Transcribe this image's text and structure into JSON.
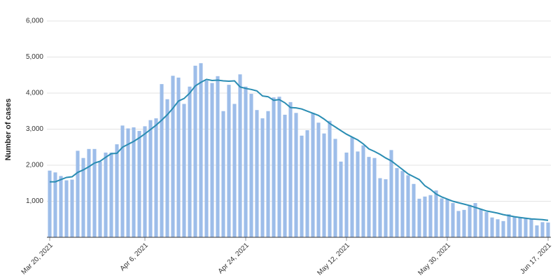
{
  "chart_data": {
    "type": "bar",
    "y_label": "Number of cases",
    "categories": [
      "Mar 20, 2021",
      null,
      null,
      null,
      null,
      null,
      null,
      null,
      null,
      null,
      null,
      null,
      null,
      null,
      null,
      null,
      null,
      "Apr 6, 2021",
      null,
      null,
      null,
      null,
      null,
      null,
      null,
      null,
      null,
      null,
      null,
      null,
      null,
      null,
      null,
      null,
      null,
      "Apr 24, 2021",
      null,
      null,
      null,
      null,
      null,
      null,
      null,
      null,
      null,
      null,
      null,
      null,
      null,
      null,
      null,
      null,
      null,
      "May 12, 2021",
      null,
      null,
      null,
      null,
      null,
      null,
      null,
      null,
      null,
      null,
      null,
      null,
      null,
      null,
      null,
      null,
      null,
      "May 30, 2021",
      null,
      null,
      null,
      null,
      null,
      null,
      null,
      null,
      null,
      null,
      null,
      null,
      null,
      null,
      null,
      null,
      null,
      "Jun 17, 2021"
    ],
    "series": [
      {
        "type": "bar",
        "color": "#9dbde9",
        "values": [
          1850,
          1800,
          1700,
          1580,
          1600,
          2400,
          2200,
          2450,
          2450,
          2100,
          2350,
          2350,
          2580,
          3100,
          3020,
          3050,
          2950,
          3080,
          3250,
          3300,
          4250,
          3830,
          4480,
          4430,
          3700,
          4180,
          4760,
          4830,
          4350,
          4280,
          4470,
          3500,
          4230,
          3700,
          4520,
          4180,
          3980,
          3530,
          3300,
          3500,
          3880,
          3900,
          3400,
          3750,
          3450,
          2820,
          2970,
          3450,
          3180,
          2880,
          3230,
          2730,
          2100,
          2350,
          2770,
          2380,
          2550,
          2230,
          2200,
          1640,
          1610,
          2420,
          1920,
          1840,
          1720,
          1480,
          1070,
          1130,
          1170,
          1300,
          1080,
          1060,
          950,
          730,
          760,
          900,
          950,
          780,
          700,
          550,
          500,
          450,
          640,
          580,
          560,
          530,
          500,
          330,
          420,
          410
        ]
      },
      {
        "type": "line",
        "color": "#2a8db3",
        "values": [
          1540,
          1540,
          1600,
          1660,
          1680,
          1800,
          1870,
          1960,
          2060,
          2110,
          2220,
          2320,
          2330,
          2500,
          2580,
          2660,
          2760,
          2870,
          2990,
          3110,
          3250,
          3400,
          3580,
          3780,
          3850,
          4000,
          4200,
          4300,
          4380,
          4350,
          4360,
          4340,
          4330,
          4340,
          4170,
          4130,
          4100,
          4060,
          3920,
          3900,
          3800,
          3820,
          3730,
          3600,
          3590,
          3560,
          3500,
          3440,
          3380,
          3280,
          3160,
          3060,
          2960,
          2860,
          2780,
          2700,
          2590,
          2450,
          2380,
          2300,
          2200,
          2120,
          2000,
          1880,
          1760,
          1680,
          1600,
          1430,
          1330,
          1200,
          1120,
          1060,
          1000,
          960,
          920,
          880,
          830,
          780,
          730,
          700,
          670,
          630,
          600,
          570,
          550,
          530,
          510,
          500,
          490,
          470
        ]
      }
    ],
    "ylim": [
      0,
      6000
    ],
    "yticks": [
      {
        "value": 1000,
        "label": "1,000"
      },
      {
        "value": 2000,
        "label": "2,000"
      },
      {
        "value": 3000,
        "label": "3,000"
      },
      {
        "value": 4000,
        "label": "4,000"
      },
      {
        "value": 5000,
        "label": "5,000"
      },
      {
        "value": 6000,
        "label": "6,000"
      }
    ],
    "grid": true
  }
}
